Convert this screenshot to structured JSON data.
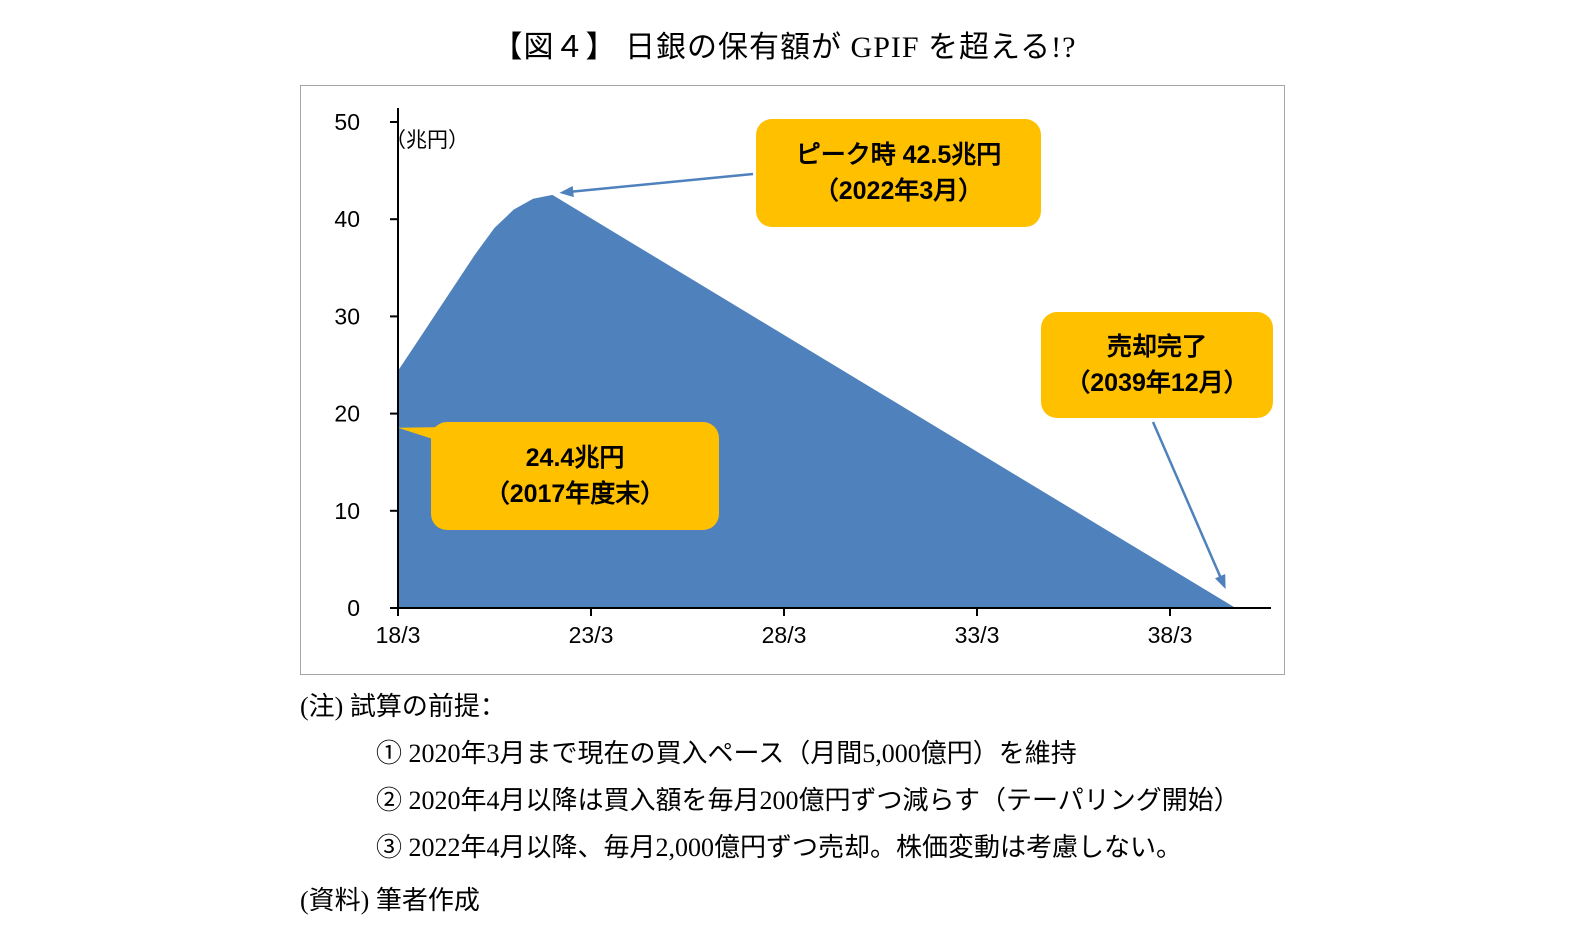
{
  "title": "【図４】 日銀の保有額が GPIF を超える!?",
  "chart_data": {
    "type": "area",
    "unit_label": "（兆円）",
    "x_ticks": [
      "18/3",
      "23/3",
      "28/3",
      "33/3",
      "38/3"
    ],
    "x_tick_years": [
      2018.25,
      2023.25,
      2028.25,
      2033.25,
      2038.25
    ],
    "y_ticks": [
      0,
      10,
      20,
      30,
      40,
      50
    ],
    "ylim": [
      0,
      50
    ],
    "xlim": [
      2018.25,
      2040.9
    ],
    "grid": false,
    "legend": "none",
    "series": [
      {
        "points": [
          [
            2018.25,
            24.4
          ],
          [
            2018.75,
            27.4
          ],
          [
            2019.25,
            30.4
          ],
          [
            2019.75,
            33.4
          ],
          [
            2020.25,
            36.4
          ],
          [
            2020.75,
            39.1
          ],
          [
            2021.25,
            41.0
          ],
          [
            2021.75,
            42.1
          ],
          [
            2022.25,
            42.5
          ],
          [
            2039.95,
            0
          ]
        ]
      }
    ],
    "annotations": [
      {
        "id": "peak",
        "lines": [
          "ピーク時 42.5兆円",
          "（2022年3月）"
        ],
        "target": [
          2022.25,
          42.5
        ]
      },
      {
        "id": "end",
        "lines": [
          "売却完了",
          "（2039年12月）"
        ],
        "target": [
          2039.95,
          0
        ]
      },
      {
        "id": "start",
        "lines": [
          "24.4兆円",
          "（2017年度末）"
        ],
        "target": [
          2018.25,
          24.4
        ]
      }
    ],
    "colors": {
      "area": "#4F81BD",
      "callout": "#FFC000",
      "arrow": "#4F81BD",
      "axis": "#000000"
    }
  },
  "notes": {
    "heading": "(注) 試算の前提：",
    "items": [
      "① 2020年3月まで現在の買入ペース（月間5,000億円）を維持",
      "② 2020年4月以降は買入額を毎月200億円ずつ減らす（テーパリング開始）",
      "③ 2022年4月以降、毎月2,000億円ずつ売却。株価変動は考慮しない。"
    ],
    "source": "(資料) 筆者作成"
  }
}
